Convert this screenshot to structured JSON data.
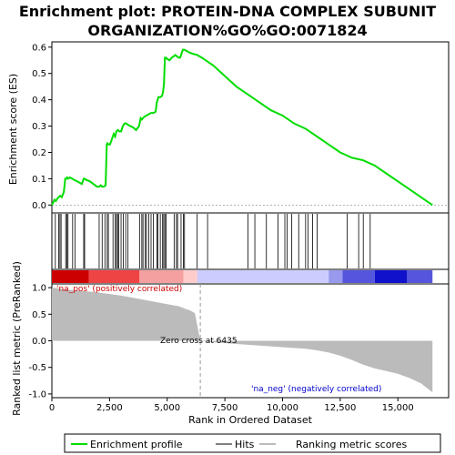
{
  "chart_data": {
    "type": "line",
    "title_line1": "Enrichment plot: PROTEIN-DNA COMPLEX SUBUNIT",
    "title_line2": "ORGANIZATION%GO%GO:0071824",
    "top_panel": {
      "ylabel": "Enrichment score (ES)",
      "ylim": [
        -0.03,
        0.62
      ],
      "yticks": [
        0.0,
        0.1,
        0.2,
        0.3,
        0.4,
        0.5,
        0.6
      ],
      "ytick_labels": [
        "0.0",
        "0.1",
        "0.2",
        "0.3",
        "0.4",
        "0.5",
        "0.6"
      ],
      "series": [
        {
          "name": "Enrichment profile",
          "color": "#00dd00",
          "x": [
            0,
            60,
            110,
            170,
            240,
            300,
            360,
            430,
            520,
            580,
            620,
            660,
            700,
            780,
            880,
            980,
            1100,
            1200,
            1300,
            1380,
            1420,
            1500,
            1650,
            1800,
            1950,
            2050,
            2120,
            2180,
            2260,
            2330,
            2380,
            2410,
            2460,
            2520,
            2600,
            2680,
            2740,
            2800,
            2860,
            2920,
            3000,
            3080,
            3150,
            3220,
            3300,
            3400,
            3520,
            3650,
            3780,
            3850,
            3900,
            3950,
            4000,
            4100,
            4200,
            4300,
            4400,
            4500,
            4550,
            4620,
            4700,
            4780,
            4820,
            4860,
            4900,
            4950,
            5000,
            5100,
            5200,
            5280,
            5350,
            5420,
            5500,
            5560,
            5620,
            5680,
            5750,
            5850,
            5950,
            6100,
            6300,
            6500,
            7000,
            7500,
            8000,
            8500,
            9000,
            9500,
            10000,
            10500,
            11000,
            11500,
            12000,
            12500,
            13000,
            13500,
            14000,
            14500,
            15000,
            15500,
            16000,
            16500
          ],
          "y": [
            0.0,
            0.01,
            0.02,
            0.015,
            0.025,
            0.03,
            0.035,
            0.03,
            0.05,
            0.1,
            0.1,
            0.105,
            0.1,
            0.105,
            0.1,
            0.095,
            0.09,
            0.085,
            0.08,
            0.1,
            0.1,
            0.095,
            0.09,
            0.08,
            0.07,
            0.07,
            0.075,
            0.07,
            0.07,
            0.075,
            0.23,
            0.235,
            0.23,
            0.23,
            0.25,
            0.27,
            0.26,
            0.28,
            0.285,
            0.28,
            0.28,
            0.3,
            0.31,
            0.31,
            0.305,
            0.3,
            0.295,
            0.285,
            0.3,
            0.33,
            0.325,
            0.33,
            0.335,
            0.34,
            0.345,
            0.35,
            0.35,
            0.355,
            0.39,
            0.41,
            0.41,
            0.415,
            0.43,
            0.46,
            0.56,
            0.56,
            0.555,
            0.55,
            0.56,
            0.565,
            0.57,
            0.565,
            0.56,
            0.56,
            0.575,
            0.59,
            0.59,
            0.585,
            0.58,
            0.575,
            0.57,
            0.56,
            0.53,
            0.49,
            0.45,
            0.42,
            0.39,
            0.36,
            0.34,
            0.31,
            0.29,
            0.26,
            0.23,
            0.2,
            0.18,
            0.17,
            0.15,
            0.12,
            0.09,
            0.06,
            0.03,
            0.0
          ]
        }
      ]
    },
    "hits": {
      "name": "Hits",
      "x": [
        150,
        300,
        350,
        400,
        600,
        650,
        700,
        900,
        1000,
        1380,
        1420,
        2050,
        2180,
        2300,
        2400,
        2450,
        2650,
        2750,
        2800,
        2850,
        2900,
        3000,
        3100,
        3200,
        3300,
        3800,
        3900,
        3950,
        4050,
        4100,
        4200,
        4300,
        4400,
        4550,
        4600,
        4700,
        4800,
        4850,
        4900,
        4950,
        5300,
        5400,
        5450,
        5600,
        5700,
        5750,
        6300,
        6750,
        8500,
        8800,
        9300,
        9800,
        10100,
        10200,
        10400,
        10700,
        11000,
        11100,
        11300,
        11500,
        12800,
        13300,
        13500,
        13800
      ]
    },
    "rank_bar": {
      "x_range": [
        0,
        16500
      ],
      "colors": {
        "pos_dark": "#cc0000",
        "pos_mid": "#ee4444",
        "pos_light": "#f4a0a0",
        "neutral": "#ffcccc",
        "neutral_blue": "#ccccff",
        "neg_light": "#9999ee",
        "neg_mid": "#5555dd",
        "neg_dark": "#1111cc"
      }
    },
    "bottom_panel": {
      "ylabel": "Ranked list metric (PreRanked)",
      "xlabel": "Rank in Ordered Dataset",
      "ylim": [
        -1.07,
        1.07
      ],
      "yticks": [
        -1.0,
        -0.5,
        0.0,
        0.5,
        1.0
      ],
      "ytick_labels": [
        "-1.0",
        "-0.5",
        "0.0",
        "0.5",
        "1.0"
      ],
      "xticks": [
        0,
        2500,
        5000,
        7500,
        10000,
        12500,
        15000
      ],
      "xtick_labels": [
        "0",
        "2,500",
        "5,000",
        "7,500",
        "10,000",
        "12,500",
        "15,000"
      ],
      "xlim": [
        0,
        17200
      ],
      "zero_cross": 6435,
      "zero_cross_label": "Zero cross at 6435",
      "pos_label": "'na_pos' (positively correlated)",
      "neg_label": "'na_neg' (negatively correlated)",
      "pos_color": "#cc0000",
      "neg_color": "#0000cc",
      "metric": {
        "x": [
          0,
          200,
          500,
          1000,
          1500,
          2000,
          2500,
          3000,
          3500,
          4000,
          4500,
          5000,
          5500,
          5800,
          6000,
          6200,
          6435,
          7000,
          8000,
          9000,
          10000,
          11000,
          11500,
          12000,
          12500,
          13000,
          13500,
          14000,
          14500,
          15000,
          15500,
          16000,
          16300,
          16500
        ],
        "y": [
          1.0,
          0.99,
          0.97,
          0.95,
          0.93,
          0.91,
          0.88,
          0.85,
          0.81,
          0.77,
          0.73,
          0.69,
          0.65,
          0.6,
          0.57,
          0.52,
          0.0,
          -0.03,
          -0.06,
          -0.09,
          -0.12,
          -0.15,
          -0.18,
          -0.22,
          -0.28,
          -0.36,
          -0.45,
          -0.52,
          -0.57,
          -0.62,
          -0.7,
          -0.8,
          -0.9,
          -0.97
        ]
      }
    },
    "legend": [
      {
        "label": "Enrichment profile",
        "color": "#00dd00"
      },
      {
        "label": "Hits",
        "color": "#000000"
      },
      {
        "label": "Ranking metric scores",
        "color": "#bbbbbb"
      }
    ]
  }
}
